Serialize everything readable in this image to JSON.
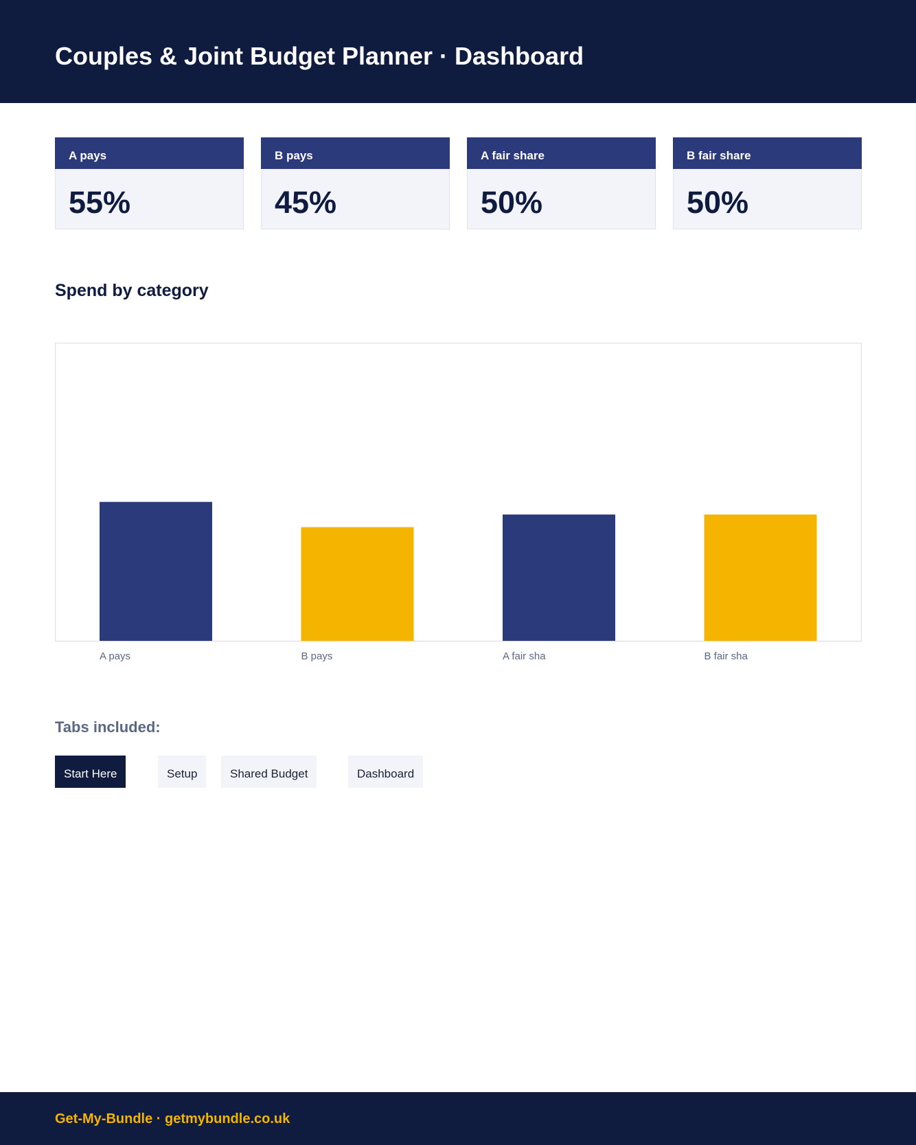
{
  "header": {
    "title": "Couples & Joint Budget Planner · Dashboard"
  },
  "cards": [
    {
      "label": "A pays",
      "value": "55%"
    },
    {
      "label": "B pays",
      "value": "45%"
    },
    {
      "label": "A fair share",
      "value": "50%"
    },
    {
      "label": "B fair share",
      "value": "50%"
    }
  ],
  "section": {
    "title": "Spend by category"
  },
  "chart_data": {
    "type": "bar",
    "categories": [
      "A pays",
      "B pays",
      "A fair sha",
      "B fair sha"
    ],
    "values": [
      55,
      45,
      50,
      50
    ],
    "colors": [
      "#2b3a7a",
      "#f4b400",
      "#2b3a7a",
      "#f4b400"
    ],
    "ylim": [
      0,
      118
    ],
    "grid": false
  },
  "tabs_section": {
    "title": "Tabs included:",
    "tabs": [
      {
        "label": "Start Here",
        "active": true
      },
      {
        "label": "Setup",
        "active": false
      },
      {
        "label": "Shared Budget",
        "active": false
      },
      {
        "label": "Dashboard",
        "active": false
      }
    ]
  },
  "footer": {
    "text": "Get-My-Bundle · getmybundle.co.uk"
  },
  "colors": {
    "navy": "#0f1b3f",
    "blue": "#2b3a7a",
    "gold": "#f4b400",
    "muted": "#5a6883",
    "card_bg": "#f2f4fa"
  }
}
